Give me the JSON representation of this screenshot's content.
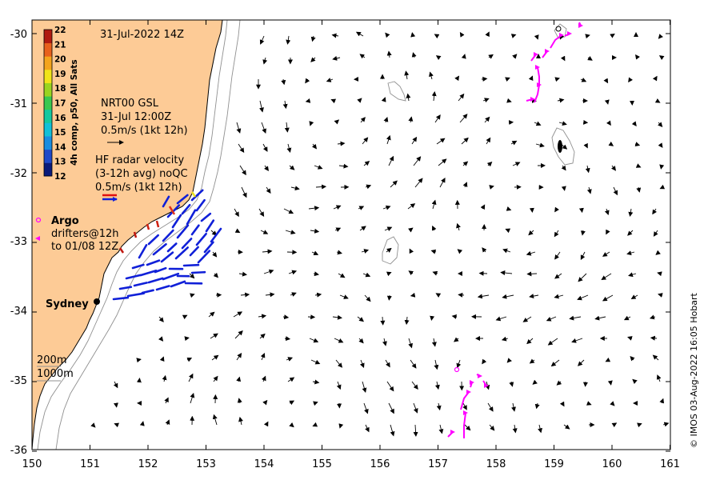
{
  "date_label": "31-Jul-2022 14Z",
  "colorbar": {
    "title": "4h comp, p50, All Sats",
    "levels": [
      "12",
      "13",
      "14",
      "15",
      "16",
      "17",
      "18",
      "19",
      "20",
      "21",
      "22"
    ],
    "colors": [
      "#0a1a7a",
      "#1f48c8",
      "#1a8de0",
      "#12c0d8",
      "#14c8a0",
      "#39c850",
      "#9ad420",
      "#f0e418",
      "#f4a41c",
      "#e8601c",
      "#b01a10"
    ]
  },
  "legend": {
    "nrt_line1": "NRT00 GSL",
    "nrt_line2": "31-Jul 12:00Z",
    "nrt_line3": "0.5m/s (1kt 12h)",
    "hf_line1": "HF radar velocity",
    "hf_line2": "(3-12h avg) noQC",
    "hf_line3": "0.5m/s (1kt 12h)",
    "argo_label": "Argo",
    "drifters_line1": "drifters@12h",
    "drifters_line2": "to 01/08 12Z",
    "sydney_label": "Sydney",
    "depth_200": "200m",
    "depth_1000": "1000m"
  },
  "credit": "© IMOS 03-Aug-2022 16:05 Hobart",
  "colors": {
    "land": "#fdcb96",
    "hf_radar": "#1020d8",
    "drifter": "#ff00ff",
    "gsl_arrow": "#000000",
    "isobath": "#909090",
    "hf_legend_red": "#e01010"
  },
  "axes": {
    "lon_ticks": [
      "150",
      "151",
      "152",
      "153",
      "154",
      "155",
      "156",
      "157",
      "158",
      "159",
      "160",
      "161"
    ],
    "lat_ticks": [
      "-30",
      "-31",
      "-32",
      "-33",
      "-34",
      "-35",
      "-36"
    ]
  }
}
